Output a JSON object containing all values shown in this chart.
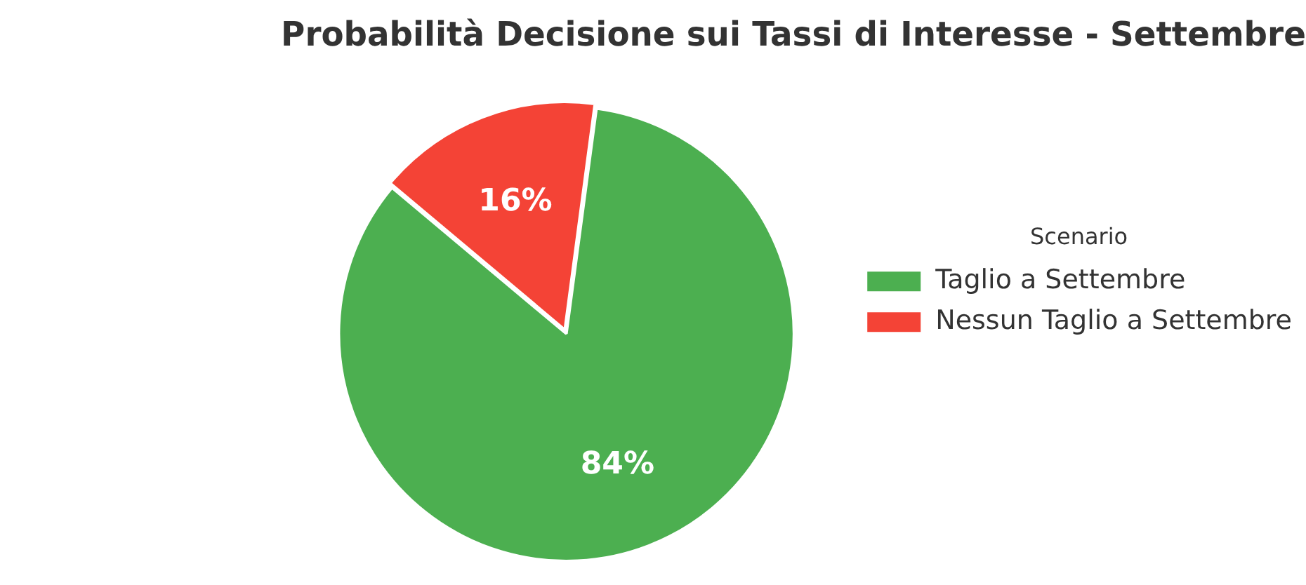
{
  "chart_data": {
    "type": "pie",
    "title": "Probabilità Decisione sui Tassi di Interesse - Settembre",
    "legend_title": "Scenario",
    "categories": [
      "Taglio a Settembre",
      "Nessun Taglio a Settembre"
    ],
    "values": [
      84,
      16
    ],
    "colors": [
      "#4caf50",
      "#f44336"
    ],
    "value_labels": [
      "84%",
      "16%"
    ],
    "legend": "right"
  }
}
